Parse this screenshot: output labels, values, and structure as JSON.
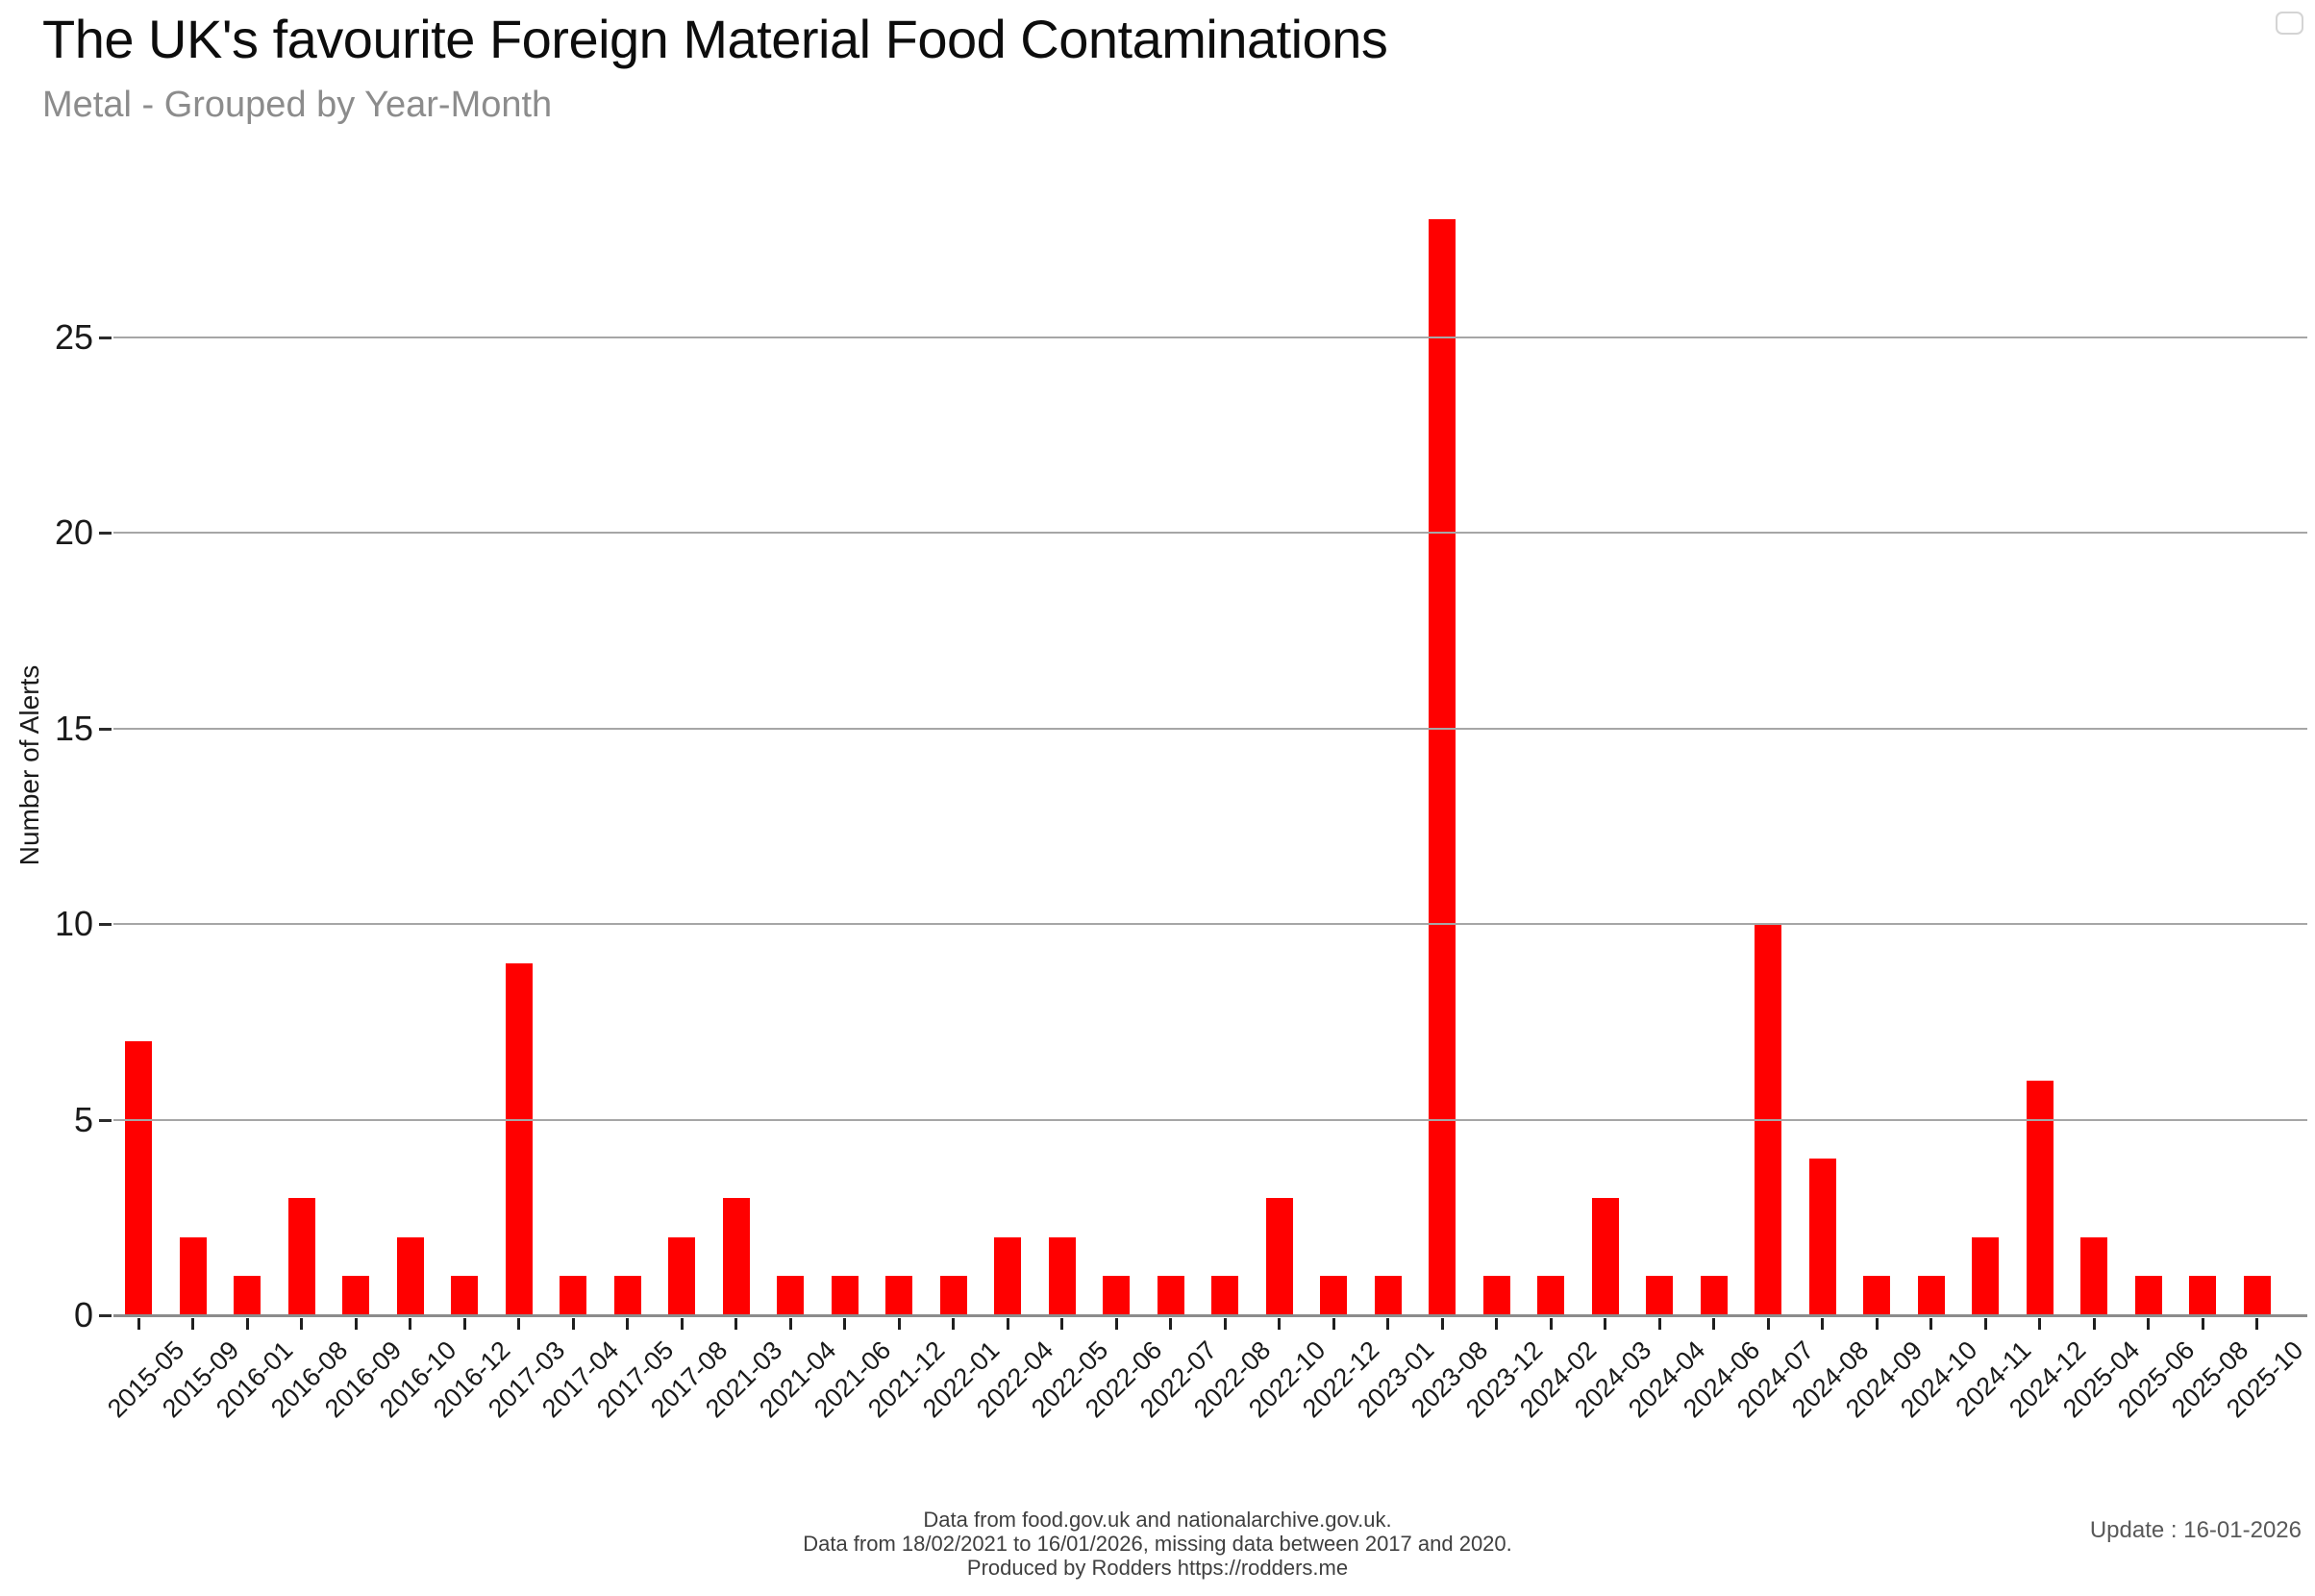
{
  "header": {
    "title": "The UK's favourite Foreign Material Food Contaminations",
    "subtitle": "Metal - Grouped by Year-Month"
  },
  "chart_data": {
    "type": "bar",
    "title": "The UK's favourite Foreign Material Food Contaminations",
    "subtitle": "Metal - Grouped by Year-Month",
    "xlabel": "",
    "ylabel": "Number of Alerts",
    "categories": [
      "2015-05",
      "2015-09",
      "2016-01",
      "2016-08",
      "2016-09",
      "2016-10",
      "2016-12",
      "2017-03",
      "2017-04",
      "2017-05",
      "2017-08",
      "2021-03",
      "2021-04",
      "2021-06",
      "2021-12",
      "2022-01",
      "2022-04",
      "2022-05",
      "2022-06",
      "2022-07",
      "2022-08",
      "2022-10",
      "2022-12",
      "2023-01",
      "2023-08",
      "2023-12",
      "2024-02",
      "2024-03",
      "2024-04",
      "2024-06",
      "2024-07",
      "2024-08",
      "2024-09",
      "2024-10",
      "2024-11",
      "2024-12",
      "2025-04",
      "2025-06",
      "2025-08",
      "2025-10"
    ],
    "values": [
      7,
      2,
      1,
      3,
      1,
      2,
      1,
      9,
      1,
      1,
      2,
      3,
      1,
      1,
      1,
      1,
      2,
      2,
      1,
      1,
      1,
      3,
      1,
      1,
      28,
      1,
      1,
      3,
      1,
      1,
      10,
      4,
      1,
      1,
      2,
      6,
      2,
      1,
      1,
      1
    ],
    "yticks": [
      0,
      5,
      10,
      15,
      20,
      25
    ],
    "ylim": [
      0,
      30
    ],
    "grid": true,
    "legend_position": "none",
    "bar_color": "#ff0000"
  },
  "colors": {
    "bar": "#ff0000",
    "subtitle_text": "#8c8c8c",
    "gridline": "#a6a6a6",
    "axis_line": "#8c8c8c",
    "footer_text": "#3f3f3f",
    "update_text": "#595959"
  },
  "footer": {
    "line1": "Data from food.gov.uk and nationalarchive.gov.uk.",
    "line2": "Data from 18/02/2021 to 16/01/2026, missing data between 2017 and 2020.",
    "line3": "Produced by Rodders https://rodders.me",
    "update": "Update : 16-01-2026"
  }
}
